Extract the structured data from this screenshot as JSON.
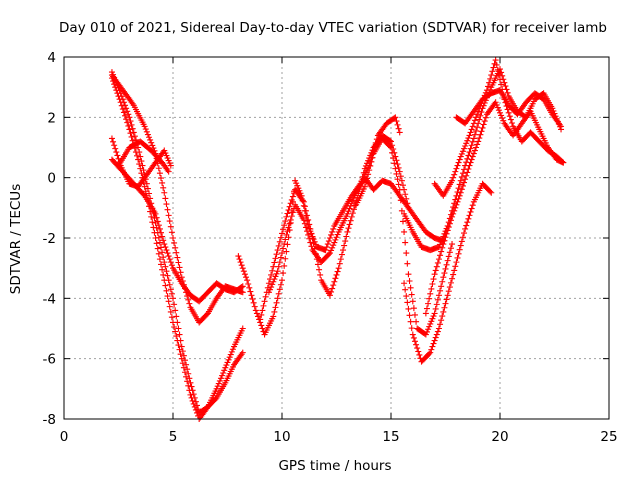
{
  "chart_data": {
    "type": "scatter",
    "title": "Day 010 of 2021, Sidereal Day-to-day VTEC variation (SDTVAR) for receiver lamb",
    "xlabel": "GPS time / hours",
    "ylabel": "SDTVAR / TECUs",
    "xlim": [
      0,
      25
    ],
    "ylim": [
      -8,
      4
    ],
    "xticks": [
      "0",
      "5",
      "10",
      "15",
      "20",
      "25"
    ],
    "yticks": [
      "-8",
      "-6",
      "-4",
      "-2",
      "0",
      "2",
      "4"
    ],
    "grid": true,
    "marker": "plus",
    "color": "#ff0000",
    "series": [
      {
        "x": [
          2.2,
          2.6,
          3.0,
          3.4,
          3.8,
          4.2,
          4.6,
          5.0,
          5.4,
          5.8,
          6.2,
          6.6,
          7.0,
          7.4,
          7.8,
          8.2
        ],
        "y": [
          3.5,
          2.8,
          2.0,
          1.0,
          -0.2,
          -1.5,
          -2.8,
          -4.0,
          -5.6,
          -6.8,
          -7.8,
          -7.6,
          -7.3,
          -6.8,
          -6.2,
          -5.8
        ]
      },
      {
        "x": [
          2.2,
          2.6,
          3.0,
          3.4,
          3.8,
          4.2,
          4.6,
          5.0,
          5.4,
          5.8,
          6.2,
          6.6,
          7.0,
          7.4,
          7.8,
          8.2
        ],
        "y": [
          3.3,
          2.5,
          1.6,
          0.6,
          -0.6,
          -2.0,
          -3.4,
          -4.8,
          -6.0,
          -7.2,
          -8.0,
          -7.6,
          -7.0,
          -6.3,
          -5.6,
          -5.0
        ]
      },
      {
        "x": [
          2.2,
          2.7,
          3.2,
          3.7,
          4.2,
          4.6,
          5.0,
          5.4,
          5.8,
          6.2,
          6.6,
          7.0,
          7.4,
          7.8,
          8.2
        ],
        "y": [
          3.4,
          2.9,
          2.4,
          1.7,
          0.8,
          -0.5,
          -2.0,
          -3.3,
          -4.3,
          -4.8,
          -4.5,
          -4.0,
          -3.6,
          -3.7,
          -3.8
        ]
      },
      {
        "x": [
          2.2,
          2.7,
          3.2,
          3.7,
          4.2,
          4.6,
          5.0,
          5.4,
          5.8,
          6.2,
          6.6,
          7.0,
          7.4,
          7.8,
          8.2
        ],
        "y": [
          0.6,
          0.2,
          -0.2,
          -0.6,
          -1.2,
          -2.2,
          -3.0,
          -3.5,
          -3.9,
          -4.1,
          -3.8,
          -3.5,
          -3.7,
          -3.8,
          -3.6
        ]
      },
      {
        "x": [
          2.2,
          2.6,
          3.0,
          3.4,
          3.8,
          4.2,
          4.6,
          4.9
        ],
        "y": [
          1.3,
          0.4,
          -0.2,
          -0.3,
          0.1,
          0.5,
          0.9,
          0.4
        ]
      },
      {
        "x": [
          2.5,
          3.0,
          3.5,
          4.0,
          4.5,
          4.8
        ],
        "y": [
          0.4,
          1.0,
          1.2,
          0.9,
          0.5,
          0.2
        ]
      },
      {
        "x": [
          8.0,
          8.4,
          8.8,
          9.2,
          9.6,
          10.0,
          10.4,
          10.6,
          10.9,
          11.2,
          11.6,
          12.0,
          12.4,
          12.8,
          13.2,
          13.6,
          14.0,
          14.4,
          14.8,
          15.2,
          15.4
        ],
        "y": [
          -2.6,
          -3.4,
          -4.4,
          -5.2,
          -4.6,
          -3.4,
          -1.5,
          -0.1,
          -0.6,
          -1.6,
          -2.3,
          -2.4,
          -1.6,
          -1.1,
          -0.6,
          -0.2,
          0.4,
          1.4,
          1.8,
          2.0,
          1.5
        ]
      },
      {
        "x": [
          9.0,
          9.4,
          9.8,
          10.2,
          10.6,
          11.0,
          11.4,
          11.8,
          12.2,
          12.6,
          13.0,
          13.4,
          13.8,
          14.2,
          14.6,
          15.0,
          15.4,
          15.8
        ],
        "y": [
          -4.7,
          -3.5,
          -2.4,
          -1.3,
          -0.4,
          -0.8,
          -2.0,
          -3.4,
          -3.9,
          -3.0,
          -1.8,
          -0.8,
          0.3,
          1.0,
          1.4,
          1.2,
          0.2,
          -1.0
        ]
      },
      {
        "x": [
          9.4,
          9.8,
          10.2,
          10.6,
          11.0,
          11.4,
          11.8,
          12.2,
          12.6,
          13.0,
          13.4,
          13.8,
          14.2,
          14.6,
          15.0,
          15.4,
          15.8,
          16.2,
          16.6,
          17.0,
          17.4
        ],
        "y": [
          -3.8,
          -3.1,
          -1.9,
          -0.9,
          -1.4,
          -2.4,
          -2.8,
          -2.5,
          -1.8,
          -1.2,
          -0.5,
          0.0,
          -0.4,
          -0.1,
          -0.2,
          -0.6,
          -1.0,
          -1.4,
          -1.8,
          -2.0,
          -2.1
        ]
      },
      {
        "x": [
          13.4,
          13.8,
          14.2,
          14.6,
          15.0,
          15.4,
          15.8,
          16.2,
          16.6,
          17.0,
          17.4,
          17.8
        ],
        "y": [
          -0.9,
          -0.3,
          0.8,
          1.3,
          1.0,
          -0.4,
          -3.2,
          -5.0,
          -5.2,
          -4.5,
          -3.3,
          -2.2
        ]
      },
      {
        "x": [
          15.6,
          16.0,
          16.4,
          16.8,
          17.2,
          17.6,
          18.0,
          18.4,
          18.8,
          19.2,
          19.6
        ],
        "y": [
          -3.5,
          -5.2,
          -6.1,
          -5.8,
          -5.0,
          -3.9,
          -2.8,
          -1.7,
          -0.8,
          -0.2,
          -0.5
        ]
      },
      {
        "x": [
          15.6,
          16.0,
          16.4,
          16.8,
          17.2,
          17.6,
          18.0,
          18.4,
          18.8,
          19.2,
          19.6,
          20.0,
          20.4,
          20.8,
          21.2,
          21.6,
          22.0,
          22.4,
          22.8
        ],
        "y": [
          -1.2,
          -1.8,
          -2.3,
          -2.4,
          -2.3,
          -1.6,
          -0.6,
          0.4,
          1.3,
          2.3,
          3.0,
          3.6,
          2.7,
          2.2,
          2.0,
          2.6,
          2.8,
          2.3,
          1.6
        ]
      },
      {
        "x": [
          16.6,
          17.0,
          17.4,
          17.8,
          18.2,
          18.6,
          19.0,
          19.4,
          19.8,
          20.2,
          20.6,
          21.0,
          21.4,
          21.8,
          22.2,
          22.6,
          22.9
        ],
        "y": [
          -4.5,
          -3.2,
          -2.2,
          -1.3,
          -0.5,
          0.4,
          1.2,
          2.1,
          2.5,
          1.8,
          1.4,
          1.8,
          2.2,
          1.6,
          1.0,
          0.6,
          0.5
        ]
      },
      {
        "x": [
          17.0,
          17.4,
          17.8,
          18.2,
          18.6,
          19.0,
          19.4,
          19.8,
          20.2,
          20.6,
          21.0,
          21.4,
          21.8,
          22.2,
          22.6,
          22.9
        ],
        "y": [
          -0.2,
          -0.6,
          -0.1,
          0.7,
          1.4,
          2.2,
          2.9,
          3.9,
          2.6,
          1.7,
          1.2,
          1.5,
          1.2,
          0.9,
          0.7,
          0.5
        ]
      },
      {
        "x": [
          18.0,
          18.4,
          18.8,
          19.2,
          19.6,
          20.0,
          20.4,
          20.8,
          21.2,
          21.6,
          22.0,
          22.4,
          22.8
        ],
        "y": [
          2.0,
          1.8,
          2.2,
          2.6,
          2.8,
          2.9,
          2.4,
          2.1,
          2.5,
          2.8,
          2.6,
          2.1,
          1.7
        ]
      }
    ]
  }
}
